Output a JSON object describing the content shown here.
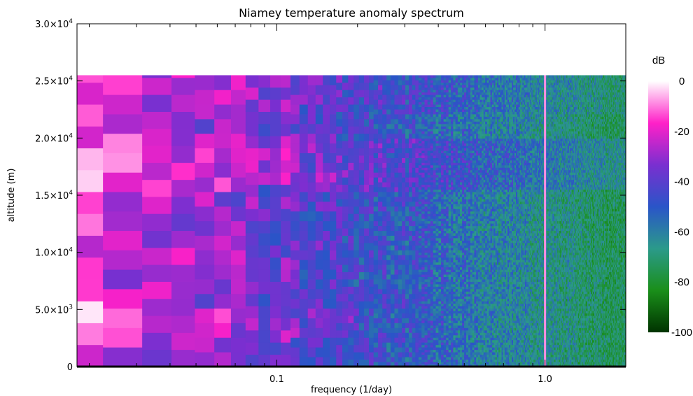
{
  "chart_data": {
    "type": "heatmap",
    "title": "Niamey temperature anomaly spectrum",
    "xlabel": "frequency (1/day)",
    "ylabel": "altitude (m)",
    "x_scale": "log",
    "xlim": [
      0.018,
      2.0
    ],
    "ylim": [
      0,
      30000
    ],
    "data_top": 25500,
    "x_ticks": [
      {
        "value": 0.1,
        "label": "0.1"
      },
      {
        "value": 1.0,
        "label": "1.0"
      }
    ],
    "y_ticks": [
      {
        "value": 0,
        "mant": "0",
        "exp": ""
      },
      {
        "value": 5000,
        "mant": "5.0×10",
        "exp": "3"
      },
      {
        "value": 10000,
        "mant": "1.0×10",
        "exp": "4"
      },
      {
        "value": 15000,
        "mant": "1.5×10",
        "exp": "4"
      },
      {
        "value": 20000,
        "mant": "2.0×10",
        "exp": "4"
      },
      {
        "value": 25000,
        "mant": "2.5×10",
        "exp": "4"
      },
      {
        "value": 30000,
        "mant": "3.0×10",
        "exp": "4"
      }
    ],
    "colorbar": {
      "unit": "dB",
      "range": [
        -100,
        0
      ],
      "ticks": [
        0,
        -20,
        -40,
        -60,
        -80,
        -100
      ],
      "tick_labels": [
        "0",
        "-20",
        "-40",
        "-60",
        "-80",
        "-100"
      ],
      "colors": [
        "#003300",
        "#1a8f1a",
        "#2b9a8a",
        "#2a55c8",
        "#7a2fd0",
        "#ff20c8",
        "#ffffff"
      ]
    },
    "diurnal_line_frequency": 1.0,
    "approx_level_by_frequency_db": [
      {
        "frequency": 0.02,
        "level": -20
      },
      {
        "frequency": 0.05,
        "level": -30
      },
      {
        "frequency": 0.1,
        "level": -38
      },
      {
        "frequency": 0.3,
        "level": -50
      },
      {
        "frequency": 1.0,
        "level": -65
      },
      {
        "frequency": 2.0,
        "level": -75
      }
    ]
  }
}
